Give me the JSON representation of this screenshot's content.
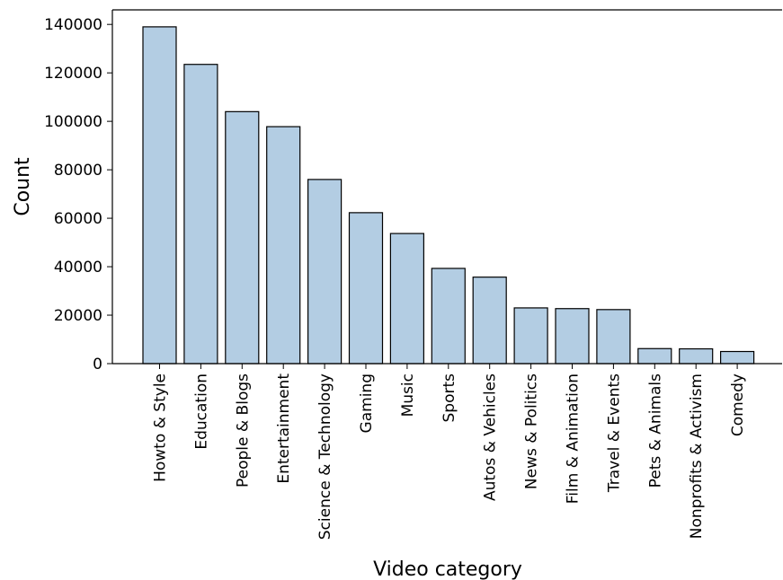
{
  "chart_data": {
    "type": "bar",
    "title": "",
    "xlabel": "Video category",
    "ylabel": "Count",
    "categories": [
      "Howto & Style",
      "Education",
      "People & Blogs",
      "Entertainment",
      "Science & Technology",
      "Gaming",
      "Music",
      "Sports",
      "Autos & Vehicles",
      "News & Politics",
      "Film & Animation",
      "Travel & Events",
      "Pets & Animals",
      "Nonprofits & Activism",
      "Comedy"
    ],
    "values": [
      139000,
      123500,
      104000,
      97800,
      76000,
      62300,
      53700,
      39300,
      35700,
      23000,
      22700,
      22300,
      6200,
      6100,
      5000
    ],
    "ylim": [
      0,
      146000
    ],
    "yticks": [
      0,
      20000,
      40000,
      60000,
      80000,
      100000,
      120000,
      140000
    ],
    "ytick_labels": [
      "0",
      "20000",
      "40000",
      "60000",
      "80000",
      "100000",
      "120000",
      "140000"
    ],
    "grid": false,
    "bar_color": "#b3cde3",
    "edge_color": "#000000"
  }
}
